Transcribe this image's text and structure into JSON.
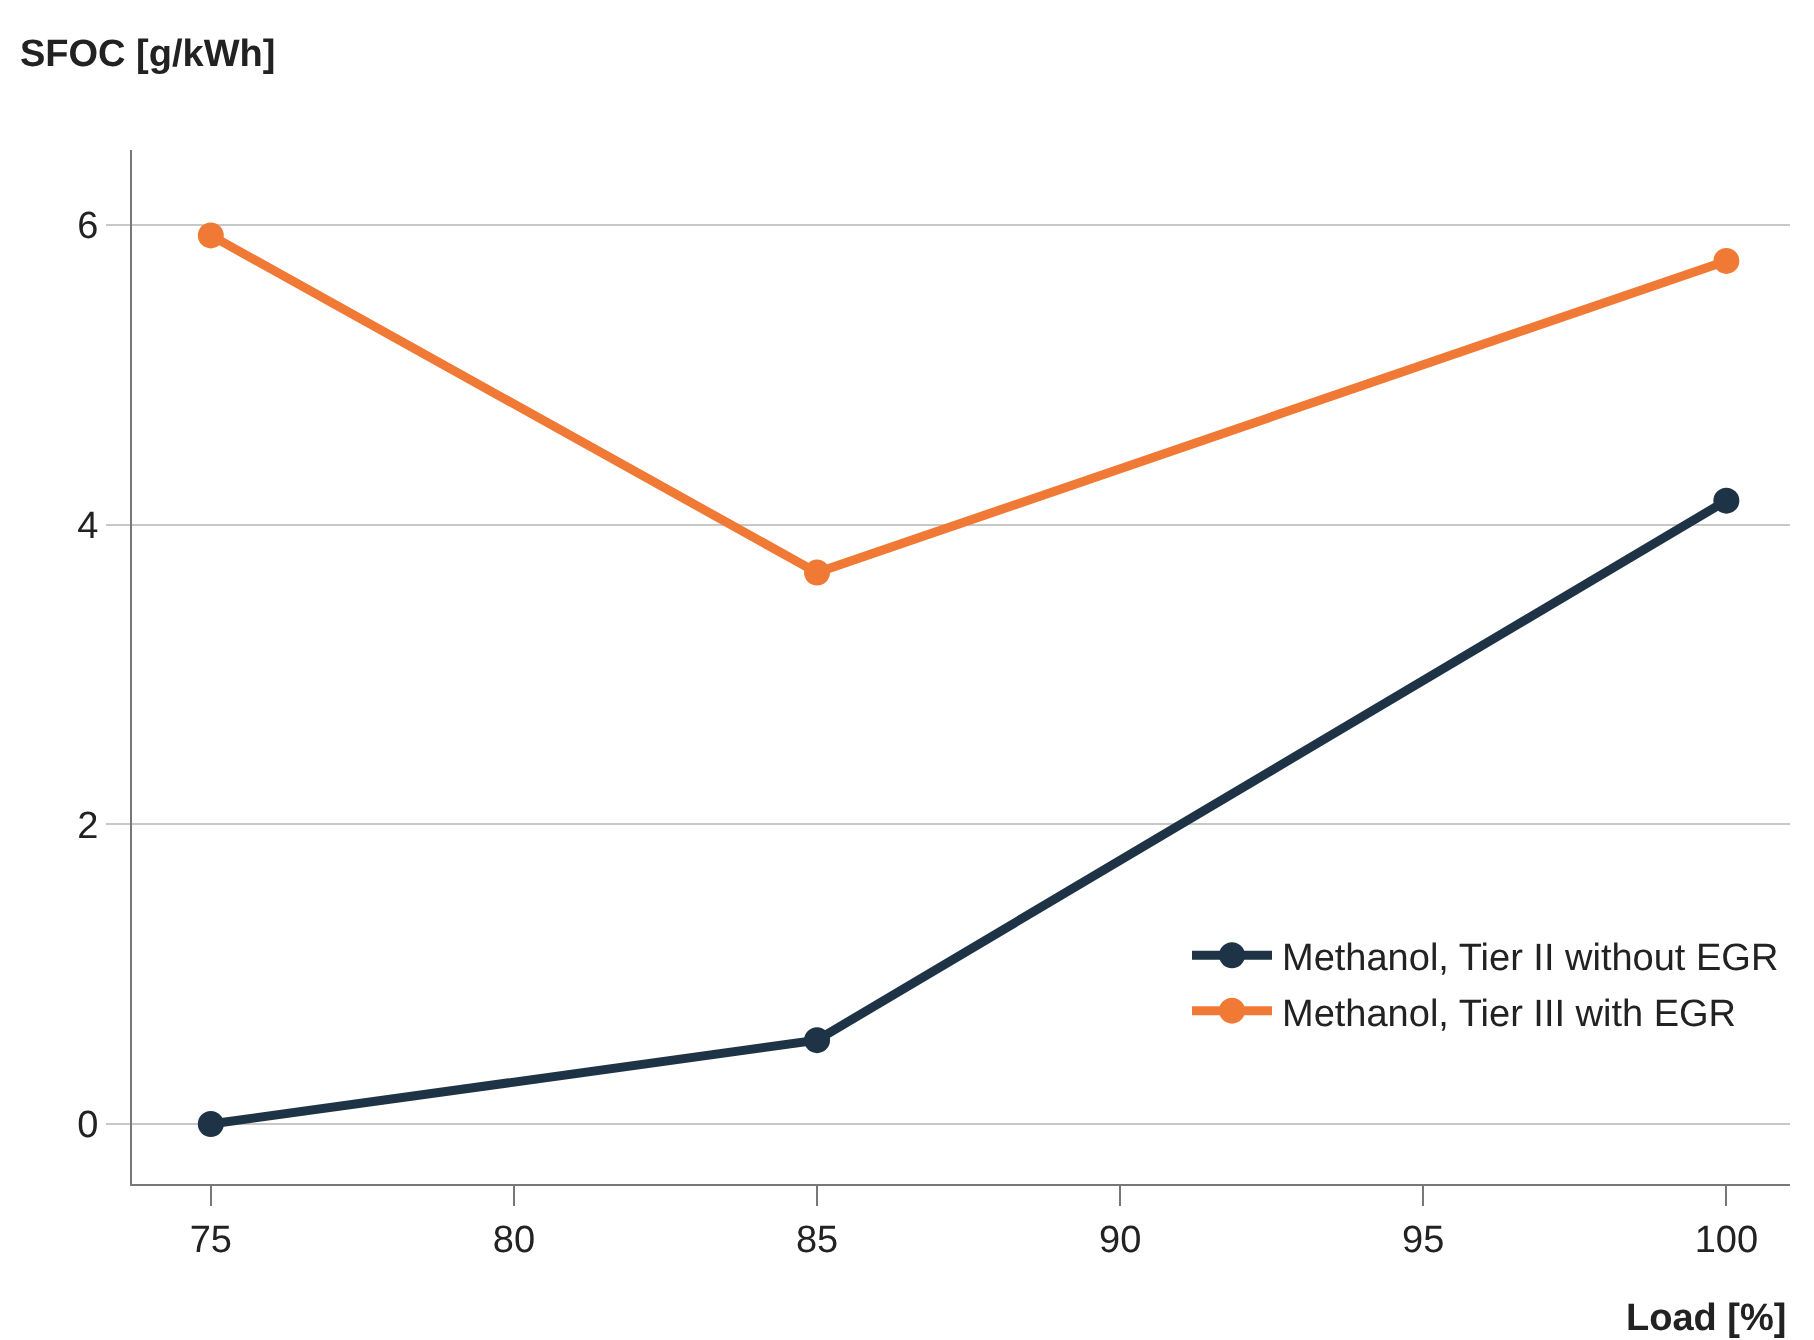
{
  "chart_data": {
    "type": "line",
    "xlabel": "Load [%]",
    "ylabel": "SFOC [g/kWh]",
    "x": [
      75,
      85,
      100
    ],
    "series": [
      {
        "name": "Methanol, Tier II without EGR",
        "color": "#1e3446",
        "values": [
          0,
          0.56,
          4.16
        ]
      },
      {
        "name": "Methanol, Tier III with EGR",
        "color": "#f07a35",
        "values": [
          5.93,
          3.68,
          5.76
        ]
      }
    ],
    "xlim": [
      73.7,
      101.05
    ],
    "xticks": [
      75,
      80,
      85,
      90,
      95,
      100
    ],
    "ylim": [
      -0.4,
      6.5
    ],
    "yticks": [
      0,
      2,
      4,
      6
    ],
    "grid": "y",
    "legend": "bottom right",
    "marker": "circle",
    "line_style": "solid"
  }
}
